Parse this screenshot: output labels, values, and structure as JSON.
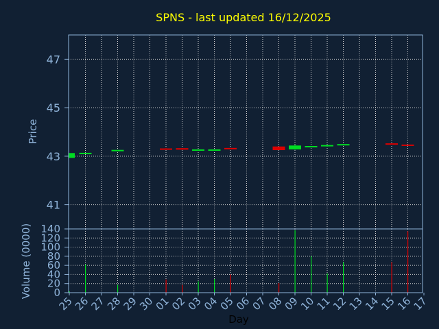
{
  "chart_data": [
    {
      "type": "candlestick",
      "title": "SPNS - last updated 16/12/2025",
      "xlabel": "Day",
      "ylabel": "Price",
      "ylim": [
        40,
        48
      ],
      "yticks": [
        41,
        43,
        45,
        47
      ],
      "grid": true,
      "x_ticks": [
        "25",
        "26",
        "27",
        "28",
        "29",
        "30",
        "01",
        "02",
        "03",
        "04",
        "05",
        "06",
        "07",
        "08",
        "09",
        "10",
        "11",
        "12",
        "13",
        "14",
        "15",
        "16",
        "17"
      ],
      "colors": {
        "up": "#00dd22",
        "down": "#dd0000",
        "background": "#112033",
        "grid": "#d0d0d0",
        "title": "#ffff00",
        "axis_text": "#8fb3d9"
      },
      "candles": [
        {
          "day": "25",
          "open": 42.93,
          "close": 43.13,
          "high": 43.13,
          "low": 42.93
        },
        {
          "day": "26",
          "open": 43.12,
          "close": 43.14,
          "high": 43.14,
          "low": 43.12
        },
        {
          "day": "28",
          "open": 43.24,
          "close": 43.26,
          "high": 43.26,
          "low": 43.24
        },
        {
          "day": "01",
          "open": 43.32,
          "close": 43.28,
          "high": 43.34,
          "low": 43.27
        },
        {
          "day": "02",
          "open": 43.33,
          "close": 43.27,
          "high": 43.33,
          "low": 43.26
        },
        {
          "day": "03",
          "open": 43.26,
          "close": 43.28,
          "high": 43.28,
          "low": 43.26
        },
        {
          "day": "04",
          "open": 43.26,
          "close": 43.28,
          "high": 43.28,
          "low": 43.26
        },
        {
          "day": "05",
          "open": 43.34,
          "close": 43.31,
          "high": 43.34,
          "low": 43.31
        },
        {
          "day": "08",
          "open": 43.4,
          "close": 43.25,
          "high": 43.4,
          "low": 43.25
        },
        {
          "day": "09",
          "open": 43.28,
          "close": 43.44,
          "high": 43.48,
          "low": 43.26
        },
        {
          "day": "10",
          "open": 43.37,
          "close": 43.42,
          "high": 43.42,
          "low": 43.37
        },
        {
          "day": "11",
          "open": 43.42,
          "close": 43.46,
          "high": 43.47,
          "low": 43.4
        },
        {
          "day": "12",
          "open": 43.46,
          "close": 43.5,
          "high": 43.5,
          "low": 43.46
        },
        {
          "day": "15",
          "open": 43.53,
          "close": 43.49,
          "high": 43.53,
          "low": 43.49
        },
        {
          "day": "16",
          "open": 43.48,
          "close": 43.45,
          "high": 43.48,
          "low": 43.45
        }
      ]
    },
    {
      "type": "bar",
      "ylabel": "Volume (0000)",
      "ylim": [
        0,
        140
      ],
      "yticks": [
        0,
        20,
        40,
        60,
        80,
        100,
        120,
        140
      ],
      "grid": true,
      "volumes": [
        {
          "day": "25",
          "value": 3,
          "dir": "up"
        },
        {
          "day": "26",
          "value": 62,
          "dir": "up"
        },
        {
          "day": "28",
          "value": 17,
          "dir": "up"
        },
        {
          "day": "01",
          "value": 29,
          "dir": "down"
        },
        {
          "day": "02",
          "value": 17,
          "dir": "down"
        },
        {
          "day": "03",
          "value": 25,
          "dir": "up"
        },
        {
          "day": "04",
          "value": 30,
          "dir": "up"
        },
        {
          "day": "05",
          "value": 40,
          "dir": "down"
        },
        {
          "day": "08",
          "value": 21,
          "dir": "down"
        },
        {
          "day": "09",
          "value": 137,
          "dir": "up"
        },
        {
          "day": "10",
          "value": 80,
          "dir": "up"
        },
        {
          "day": "11",
          "value": 42,
          "dir": "up"
        },
        {
          "day": "12",
          "value": 67,
          "dir": "up"
        },
        {
          "day": "15",
          "value": 67,
          "dir": "down"
        },
        {
          "day": "16",
          "value": 135,
          "dir": "down"
        }
      ]
    }
  ]
}
